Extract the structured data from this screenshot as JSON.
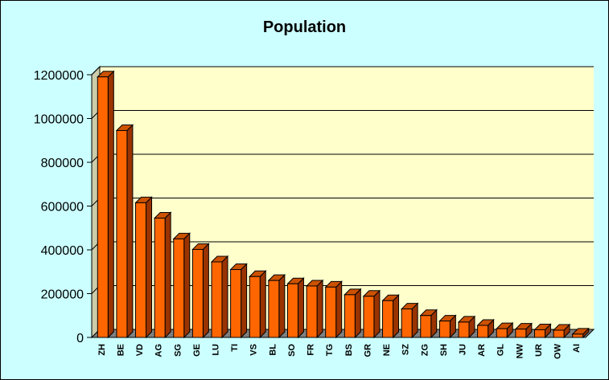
{
  "chart_data": {
    "type": "bar",
    "title": "Population",
    "xlabel": "",
    "ylabel": "",
    "ylim": [
      0,
      1200000
    ],
    "yticks": [
      "0",
      "200000",
      "400000",
      "600000",
      "800000",
      "1000000",
      "1200000"
    ],
    "grid": true,
    "legend": "none",
    "categories": [
      "ZH",
      "BE",
      "VD",
      "AG",
      "SG",
      "GE",
      "LU",
      "TI",
      "VS",
      "BL",
      "SO",
      "FR",
      "TG",
      "BS",
      "GR",
      "NE",
      "SZ",
      "ZG",
      "SH",
      "JU",
      "AR",
      "GL",
      "NW",
      "UR",
      "OW",
      "AI"
    ],
    "values": [
      1190000,
      945000,
      615000,
      545000,
      450000,
      402000,
      345000,
      310000,
      278000,
      260000,
      245000,
      235000,
      230000,
      195000,
      188000,
      168000,
      130000,
      100000,
      75000,
      70000,
      55000,
      40000,
      38000,
      35000,
      33000,
      15000
    ],
    "colors": {
      "bar_front": "#ff6600",
      "bar_side": "#993300",
      "bar_top": "#cc5200",
      "plot_bg": "#ffffcc",
      "floor": "#808080",
      "page_bg": "#ccffff"
    }
  }
}
